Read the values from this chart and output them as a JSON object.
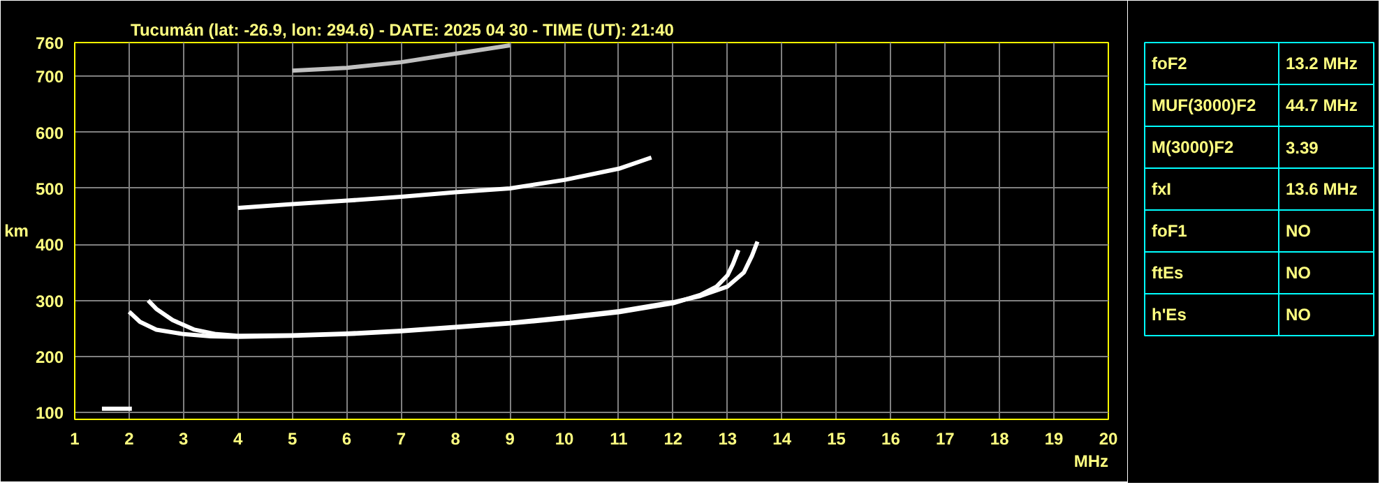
{
  "chart_data": [
    {
      "type": "line",
      "title": "Tucumán (lat: -26.9, lon: 294.6) - DATE: 2025 04 30 - TIME (UT): 21:40",
      "xlabel": "MHz",
      "ylabel": "km",
      "xlim": [
        1,
        20
      ],
      "ylim": [
        88,
        760
      ],
      "xticks": [
        1,
        2,
        3,
        4,
        5,
        6,
        7,
        8,
        9,
        10,
        11,
        12,
        13,
        14,
        15,
        16,
        17,
        18,
        19,
        20
      ],
      "yticks": [
        100,
        200,
        300,
        400,
        500,
        600,
        700,
        760
      ],
      "grid": true,
      "marker": "none",
      "line_style": "solid",
      "series": [
        {
          "color": "#ffffff",
          "x": [
            2.0,
            2.2,
            2.5,
            3,
            3.5,
            4,
            5,
            6,
            7,
            8,
            9,
            10,
            11,
            12,
            12.5,
            12.8,
            13.0,
            13.1,
            13.2
          ],
          "values": [
            280,
            262,
            248,
            240,
            236,
            235,
            237,
            240,
            245,
            252,
            259,
            268,
            279,
            295,
            310,
            325,
            345,
            365,
            390
          ]
        },
        {
          "color": "#ffffff",
          "x": [
            2.35,
            2.5,
            2.8,
            3.2,
            3.6,
            4,
            5,
            6,
            7,
            8,
            9,
            10,
            11,
            12,
            12.5,
            13.0,
            13.3,
            13.45,
            13.55
          ],
          "values": [
            300,
            285,
            265,
            248,
            240,
            237,
            238,
            241,
            246,
            253,
            260,
            270,
            281,
            297,
            308,
            325,
            350,
            380,
            405
          ]
        },
        {
          "color": "#ffffff",
          "x": [
            4,
            5,
            6,
            7,
            8,
            9,
            10,
            11,
            11.6
          ],
          "values": [
            465,
            472,
            478,
            485,
            493,
            500,
            515,
            535,
            555
          ]
        },
        {
          "color": "#c0c0c0",
          "x": [
            5,
            6,
            7,
            8,
            9
          ],
          "values": [
            710,
            715,
            725,
            740,
            755
          ]
        },
        {
          "color": "#ffffff",
          "x": [
            1.5,
            1.7,
            1.9,
            2.05
          ],
          "values": [
            107,
            107,
            107,
            107
          ]
        }
      ]
    },
    {
      "type": "other",
      "annotations": [
        "foF2",
        "13.2 MHz",
        "MUF(3000)F2",
        "44.7 MHz",
        "M(3000)F2",
        "3.39",
        "fxI",
        "13.6 MHz",
        "foF1",
        "NO",
        "ftEs",
        "NO",
        "h'Es",
        "NO"
      ]
    }
  ]
}
